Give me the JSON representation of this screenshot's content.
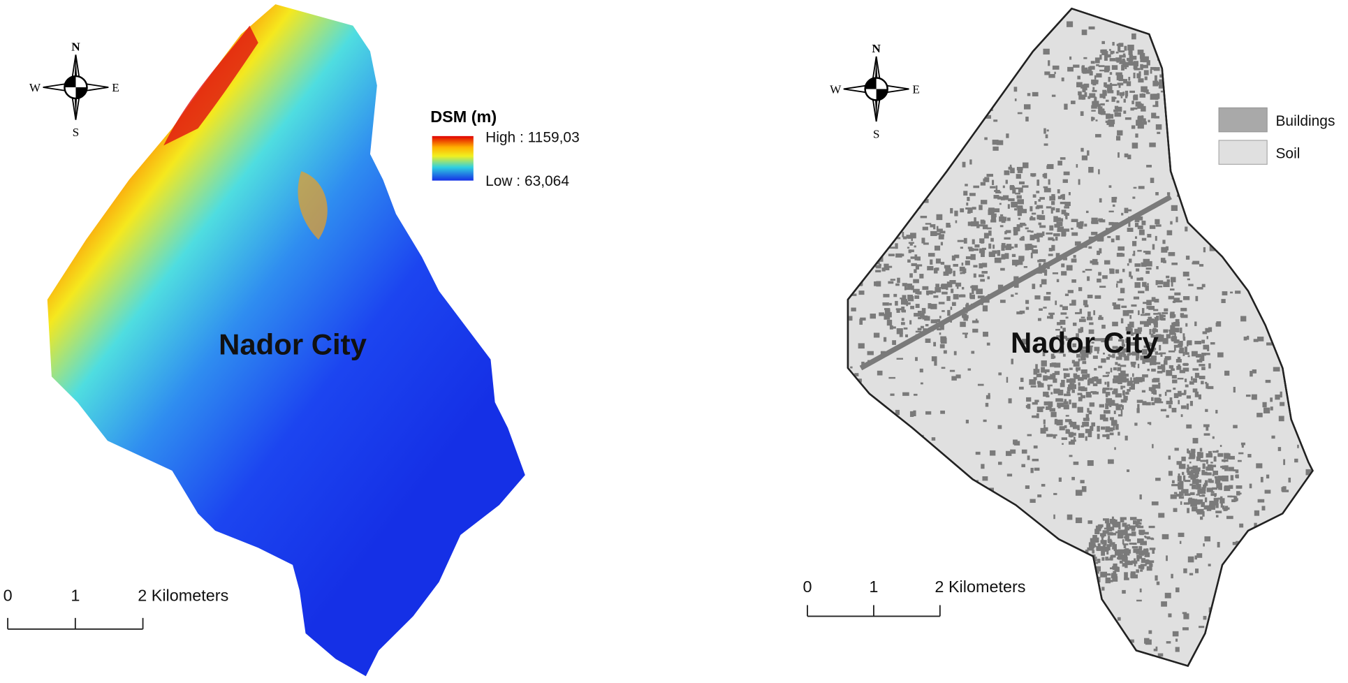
{
  "maps": [
    {
      "compass": {
        "n": "N",
        "s": "S",
        "e": "E",
        "w": "W"
      },
      "legend": {
        "title": "DSM (m)",
        "high": "High : 1159,03",
        "low": "Low : 63,064"
      },
      "label": "Nador City",
      "scale_bar": {
        "ticks": [
          "0",
          "1",
          "2 Kilometers"
        ]
      }
    },
    {
      "compass": {
        "n": "N",
        "s": "S",
        "e": "E",
        "w": "W"
      },
      "legend": {
        "items": [
          "Buildings",
          "Soil"
        ]
      },
      "label": "Nador City",
      "scale_bar": {
        "ticks": [
          "0",
          "1",
          "2 Kilometers"
        ]
      }
    }
  ]
}
